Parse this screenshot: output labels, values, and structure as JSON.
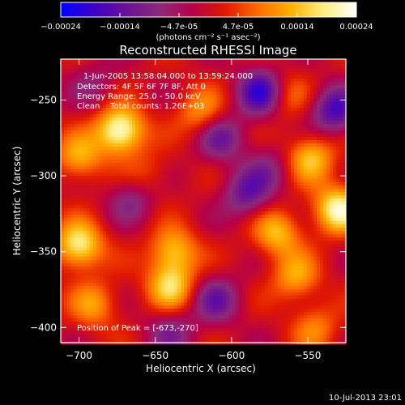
{
  "chart_data": {
    "type": "heatmap",
    "title": "Reconstructed RHESSI Image",
    "xlabel": "Heliocentric X (arcsec)",
    "ylabel": "Heliocentric Y (arcsec)",
    "xlim": [
      -712,
      -525
    ],
    "ylim": [
      -410,
      -223
    ],
    "x_ticks": [
      -700,
      -650,
      -600,
      -550
    ],
    "y_ticks": [
      -250,
      -300,
      -350,
      -400
    ],
    "x_tick_labels": [
      "−700",
      "−650",
      "−600",
      "−550"
    ],
    "y_tick_labels": [
      "−250",
      "−300",
      "−350",
      "−400"
    ],
    "colorbar": {
      "range": [
        -0.00024,
        0.00024
      ],
      "ticks": [
        "-0.00024",
        "-0.00014",
        "-4.7e-05",
        "4.7e-05",
        "0.00014",
        "0.00024"
      ],
      "units_label": "(photons cm⁻² s⁻¹ asec⁻²)",
      "colors": [
        "#0000ff",
        "#3d00c8",
        "#6a1196",
        "#8c2a7a",
        "#b5004a",
        "#e01800",
        "#ff6a00",
        "#ffb000",
        "#ffee80",
        "#ffffff"
      ]
    },
    "annotations": [
      "1-Jun-2005 13:58:04.000 to 13:59:24.000",
      "Detectors: 4F 5F 6F 7F 8F, Att 0",
      "Energy Range: 25.0 - 50.0 keV",
      "Clean    Total counts: 1.26E+03"
    ],
    "peak_label": "Position of Peak = [-673,-270]",
    "peak": [
      -673,
      -270
    ],
    "sources": [
      {
        "x": -673,
        "y": -270,
        "value": 0.00024
      },
      {
        "x": -530,
        "y": -322,
        "value": 0.00021
      },
      {
        "x": -700,
        "y": -346,
        "value": 0.0002
      },
      {
        "x": -638,
        "y": -350,
        "value": 0.00015
      },
      {
        "x": -640,
        "y": -373,
        "value": 0.00016
      },
      {
        "x": -700,
        "y": -288,
        "value": 0.00013
      },
      {
        "x": -548,
        "y": -288,
        "value": 0.00015
      },
      {
        "x": -570,
        "y": -338,
        "value": 0.00014
      },
      {
        "x": -558,
        "y": -367,
        "value": 0.00012
      },
      {
        "x": -690,
        "y": -385,
        "value": 0.00011
      },
      {
        "x": -620,
        "y": -258,
        "value": 0.00011
      },
      {
        "x": -565,
        "y": -247,
        "value": 9e-05
      },
      {
        "x": -545,
        "y": -400,
        "value": 9e-05
      },
      {
        "x": -655,
        "y": -300,
        "value": 6e-05
      },
      {
        "x": -580,
        "y": -245,
        "value": -0.0002
      },
      {
        "x": -532,
        "y": -257,
        "value": -0.00017
      },
      {
        "x": -607,
        "y": -275,
        "value": -0.00012
      },
      {
        "x": -590,
        "y": -312,
        "value": -0.00013
      },
      {
        "x": -610,
        "y": -382,
        "value": -0.00012
      },
      {
        "x": -665,
        "y": -315,
        "value": -9e-05
      },
      {
        "x": -640,
        "y": -403,
        "value": -9e-05
      },
      {
        "x": -690,
        "y": -240,
        "value": -6e-05
      },
      {
        "x": -575,
        "y": -295,
        "value": -7e-05
      }
    ]
  },
  "footer": {
    "timestamp": "10-Jul-2013 23:01"
  }
}
